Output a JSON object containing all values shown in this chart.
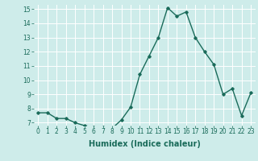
{
  "x": [
    0,
    1,
    2,
    3,
    4,
    5,
    6,
    7,
    8,
    9,
    10,
    11,
    12,
    13,
    14,
    15,
    16,
    17,
    18,
    19,
    20,
    21,
    22,
    23
  ],
  "y": [
    7.7,
    7.7,
    7.3,
    7.3,
    7.0,
    6.8,
    6.7,
    6.7,
    6.6,
    7.2,
    8.1,
    10.4,
    11.7,
    13.0,
    15.1,
    14.5,
    14.8,
    13.0,
    12.0,
    11.1,
    9.0,
    9.4,
    7.5,
    9.1
  ],
  "line_color": "#1a6b5a",
  "marker": "D",
  "marker_size": 1.8,
  "line_width": 1.0,
  "xlabel": "Humidex (Indice chaleur)",
  "ylim": [
    6.8,
    15.3
  ],
  "xlim": [
    -0.5,
    23.5
  ],
  "yticks": [
    7,
    8,
    9,
    10,
    11,
    12,
    13,
    14,
    15
  ],
  "xticks": [
    0,
    1,
    2,
    3,
    4,
    5,
    6,
    7,
    8,
    9,
    10,
    11,
    12,
    13,
    14,
    15,
    16,
    17,
    18,
    19,
    20,
    21,
    22,
    23
  ],
  "bg_color": "#ceecea",
  "grid_color": "#ffffff",
  "tick_label_fontsize": 5.5,
  "xlabel_fontsize": 7.0
}
